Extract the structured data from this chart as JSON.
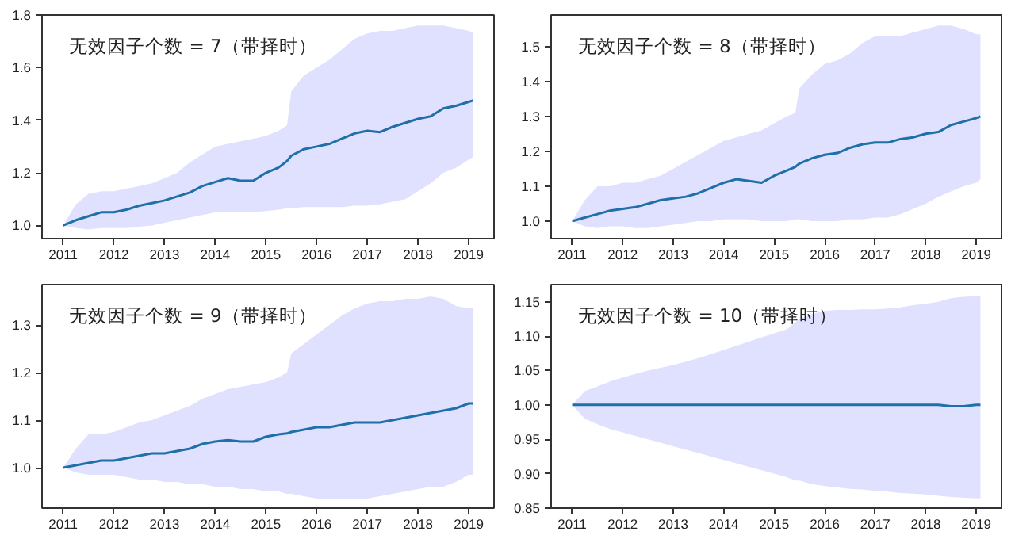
{
  "chart_data": [
    {
      "type": "line",
      "title": "无效因子个数 = 7（带择时）",
      "x": [
        "2011-01",
        "2011-04",
        "2011-07",
        "2011-10",
        "2012-01",
        "2012-04",
        "2012-07",
        "2012-10",
        "2013-01",
        "2013-04",
        "2013-07",
        "2013-10",
        "2014-01",
        "2014-04",
        "2014-07",
        "2014-10",
        "2015-01",
        "2015-04",
        "2015-06",
        "2015-07",
        "2015-10",
        "2016-01",
        "2016-04",
        "2016-07",
        "2016-10",
        "2017-01",
        "2017-04",
        "2017-07",
        "2017-10",
        "2018-01",
        "2018-04",
        "2018-07",
        "2018-10",
        "2019-01",
        "2019-02"
      ],
      "xlim": [
        "2010-08",
        "2019-07"
      ],
      "xticks": [
        "2011",
        "2012",
        "2013",
        "2014",
        "2015",
        "2016",
        "2017",
        "2018",
        "2019"
      ],
      "ylim": [
        0.95,
        1.8
      ],
      "yticks": [
        {
          "value": 1.0,
          "label": "1.0"
        },
        1.2,
        1.4,
        1.6,
        1.8
      ],
      "series": [
        {
          "color": "#1f6fa8",
          "values": [
            1.0,
            1.02,
            1.035,
            1.05,
            1.05,
            1.06,
            1.075,
            1.085,
            1.095,
            1.11,
            1.125,
            1.15,
            1.165,
            1.18,
            1.17,
            1.17,
            1.2,
            1.22,
            1.245,
            1.265,
            1.29,
            1.3,
            1.31,
            1.33,
            1.35,
            1.36,
            1.355,
            1.375,
            1.39,
            1.405,
            1.415,
            1.445,
            1.455,
            1.47,
            1.475
          ],
          "upper": [
            1.0,
            1.08,
            1.12,
            1.13,
            1.13,
            1.14,
            1.15,
            1.16,
            1.18,
            1.2,
            1.24,
            1.27,
            1.3,
            1.31,
            1.32,
            1.33,
            1.34,
            1.36,
            1.38,
            1.51,
            1.57,
            1.6,
            1.63,
            1.67,
            1.71,
            1.73,
            1.74,
            1.74,
            1.75,
            1.76,
            1.76,
            1.76,
            1.75,
            1.74,
            1.735
          ],
          "lower": [
            1.0,
            0.99,
            0.985,
            0.99,
            0.99,
            0.99,
            0.995,
            1.0,
            1.01,
            1.02,
            1.03,
            1.04,
            1.05,
            1.05,
            1.05,
            1.05,
            1.055,
            1.06,
            1.065,
            1.065,
            1.07,
            1.07,
            1.07,
            1.07,
            1.075,
            1.075,
            1.08,
            1.09,
            1.1,
            1.13,
            1.16,
            1.2,
            1.22,
            1.25,
            1.26
          ]
        }
      ]
    },
    {
      "type": "line",
      "title": "无效因子个数 = 8（带择时）",
      "x": [
        "2011-01",
        "2011-04",
        "2011-07",
        "2011-10",
        "2012-01",
        "2012-04",
        "2012-07",
        "2012-10",
        "2013-01",
        "2013-04",
        "2013-07",
        "2013-10",
        "2014-01",
        "2014-04",
        "2014-07",
        "2014-10",
        "2015-01",
        "2015-04",
        "2015-06",
        "2015-07",
        "2015-10",
        "2016-01",
        "2016-04",
        "2016-07",
        "2016-10",
        "2017-01",
        "2017-04",
        "2017-07",
        "2017-10",
        "2018-01",
        "2018-04",
        "2018-07",
        "2018-10",
        "2019-01",
        "2019-02"
      ],
      "xlim": [
        "2010-08",
        "2019-07"
      ],
      "xticks": [
        "2011",
        "2012",
        "2013",
        "2014",
        "2015",
        "2016",
        "2017",
        "2018",
        "2019"
      ],
      "ylim": [
        0.95,
        1.59
      ],
      "yticks": [
        {
          "value": 1.0,
          "label": "1.0"
        },
        1.1,
        1.2,
        1.3,
        1.4,
        1.5
      ],
      "series": [
        {
          "color": "#1f6fa8",
          "values": [
            1.0,
            1.01,
            1.02,
            1.03,
            1.035,
            1.04,
            1.05,
            1.06,
            1.065,
            1.07,
            1.08,
            1.095,
            1.11,
            1.12,
            1.115,
            1.11,
            1.13,
            1.145,
            1.155,
            1.165,
            1.18,
            1.19,
            1.195,
            1.21,
            1.22,
            1.225,
            1.225,
            1.235,
            1.24,
            1.25,
            1.255,
            1.275,
            1.285,
            1.295,
            1.3
          ],
          "upper": [
            1.0,
            1.06,
            1.1,
            1.1,
            1.11,
            1.11,
            1.12,
            1.13,
            1.15,
            1.17,
            1.19,
            1.21,
            1.23,
            1.24,
            1.25,
            1.26,
            1.28,
            1.3,
            1.31,
            1.38,
            1.42,
            1.45,
            1.46,
            1.48,
            1.51,
            1.53,
            1.53,
            1.53,
            1.54,
            1.55,
            1.56,
            1.56,
            1.55,
            1.535,
            1.535
          ],
          "lower": [
            1.0,
            0.985,
            0.98,
            0.985,
            0.985,
            0.98,
            0.98,
            0.985,
            0.99,
            0.995,
            1.0,
            1.0,
            1.005,
            1.005,
            1.005,
            1.0,
            1.0,
            1.0,
            1.005,
            1.005,
            1.0,
            1.0,
            1.0,
            1.005,
            1.005,
            1.01,
            1.01,
            1.02,
            1.035,
            1.05,
            1.07,
            1.085,
            1.1,
            1.11,
            1.12
          ]
        }
      ]
    },
    {
      "type": "line",
      "title": "无效因子个数 = 9（带择时）",
      "x": [
        "2011-01",
        "2011-04",
        "2011-07",
        "2011-10",
        "2012-01",
        "2012-04",
        "2012-07",
        "2012-10",
        "2013-01",
        "2013-04",
        "2013-07",
        "2013-10",
        "2014-01",
        "2014-04",
        "2014-07",
        "2014-10",
        "2015-01",
        "2015-04",
        "2015-06",
        "2015-07",
        "2015-10",
        "2016-01",
        "2016-04",
        "2016-07",
        "2016-10",
        "2017-01",
        "2017-04",
        "2017-07",
        "2017-10",
        "2018-01",
        "2018-04",
        "2018-07",
        "2018-10",
        "2019-01",
        "2019-02"
      ],
      "xlim": [
        "2010-08",
        "2019-07"
      ],
      "xticks": [
        "2011",
        "2012",
        "2013",
        "2014",
        "2015",
        "2016",
        "2017",
        "2018",
        "2019"
      ],
      "ylim": [
        0.915,
        1.385
      ],
      "yticks": [
        {
          "value": 1.0,
          "label": "1.0"
        },
        1.1,
        1.2,
        1.3
      ],
      "series": [
        {
          "color": "#1f6fa8",
          "values": [
            1.0,
            1.005,
            1.01,
            1.015,
            1.015,
            1.02,
            1.025,
            1.03,
            1.03,
            1.035,
            1.04,
            1.05,
            1.055,
            1.058,
            1.055,
            1.055,
            1.065,
            1.07,
            1.072,
            1.075,
            1.08,
            1.085,
            1.085,
            1.09,
            1.095,
            1.095,
            1.095,
            1.1,
            1.105,
            1.11,
            1.115,
            1.12,
            1.125,
            1.135,
            1.135
          ],
          "upper": [
            1.0,
            1.04,
            1.07,
            1.07,
            1.075,
            1.085,
            1.095,
            1.1,
            1.11,
            1.12,
            1.13,
            1.145,
            1.155,
            1.165,
            1.17,
            1.175,
            1.18,
            1.19,
            1.2,
            1.24,
            1.26,
            1.28,
            1.3,
            1.32,
            1.335,
            1.345,
            1.35,
            1.35,
            1.355,
            1.355,
            1.36,
            1.355,
            1.34,
            1.335,
            1.335
          ],
          "lower": [
            1.0,
            0.99,
            0.985,
            0.985,
            0.985,
            0.98,
            0.975,
            0.975,
            0.97,
            0.97,
            0.965,
            0.965,
            0.96,
            0.96,
            0.955,
            0.955,
            0.95,
            0.95,
            0.945,
            0.945,
            0.94,
            0.935,
            0.935,
            0.935,
            0.935,
            0.935,
            0.94,
            0.945,
            0.95,
            0.955,
            0.96,
            0.96,
            0.97,
            0.985,
            0.985
          ]
        }
      ]
    },
    {
      "type": "line",
      "title": "无效因子个数 = 10（带择时）",
      "x": [
        "2011-01",
        "2011-04",
        "2011-07",
        "2011-10",
        "2012-01",
        "2012-04",
        "2012-07",
        "2012-10",
        "2013-01",
        "2013-04",
        "2013-07",
        "2013-10",
        "2014-01",
        "2014-04",
        "2014-07",
        "2014-10",
        "2015-01",
        "2015-04",
        "2015-06",
        "2015-07",
        "2015-10",
        "2016-01",
        "2016-04",
        "2016-07",
        "2016-10",
        "2017-01",
        "2017-04",
        "2017-07",
        "2017-10",
        "2018-01",
        "2018-04",
        "2018-07",
        "2018-10",
        "2019-01",
        "2019-02"
      ],
      "xlim": [
        "2010-08",
        "2019-07"
      ],
      "xticks": [
        "2011",
        "2012",
        "2013",
        "2014",
        "2015",
        "2016",
        "2017",
        "2018",
        "2019"
      ],
      "ylim": [
        0.85,
        1.175
      ],
      "yticks": [
        0.85,
        {
          "value": 0.9,
          "label": "0.90"
        },
        0.95,
        {
          "value": 1.0,
          "label": "1.00"
        },
        1.05,
        {
          "value": 1.1,
          "label": "1.10"
        },
        1.15
      ],
      "series": [
        {
          "color": "#1f6fa8",
          "values": [
            1.0,
            1.0,
            1.0,
            1.0,
            1.0,
            1.0,
            1.0,
            1.0,
            1.0,
            1.0,
            1.0,
            1.0,
            1.0,
            1.0,
            1.0,
            1.0,
            1.0,
            1.0,
            1.0,
            1.0,
            1.0,
            1.0,
            1.0,
            1.0,
            1.0,
            1.0,
            1.0,
            1.0,
            1.0,
            1.0,
            1.0,
            0.998,
            0.998,
            1.0,
            1.0
          ],
          "upper": [
            1.0,
            1.02,
            1.027,
            1.034,
            1.04,
            1.045,
            1.05,
            1.054,
            1.058,
            1.063,
            1.068,
            1.074,
            1.08,
            1.086,
            1.092,
            1.098,
            1.104,
            1.11,
            1.12,
            1.125,
            1.132,
            1.137,
            1.138,
            1.138,
            1.139,
            1.139,
            1.14,
            1.142,
            1.145,
            1.147,
            1.15,
            1.155,
            1.157,
            1.158,
            1.158
          ],
          "lower": [
            1.0,
            0.98,
            0.972,
            0.965,
            0.96,
            0.955,
            0.95,
            0.945,
            0.94,
            0.935,
            0.93,
            0.925,
            0.92,
            0.915,
            0.91,
            0.905,
            0.9,
            0.895,
            0.89,
            0.89,
            0.885,
            0.882,
            0.88,
            0.878,
            0.877,
            0.875,
            0.874,
            0.872,
            0.871,
            0.87,
            0.868,
            0.866,
            0.865,
            0.864,
            0.864
          ]
        }
      ]
    }
  ]
}
